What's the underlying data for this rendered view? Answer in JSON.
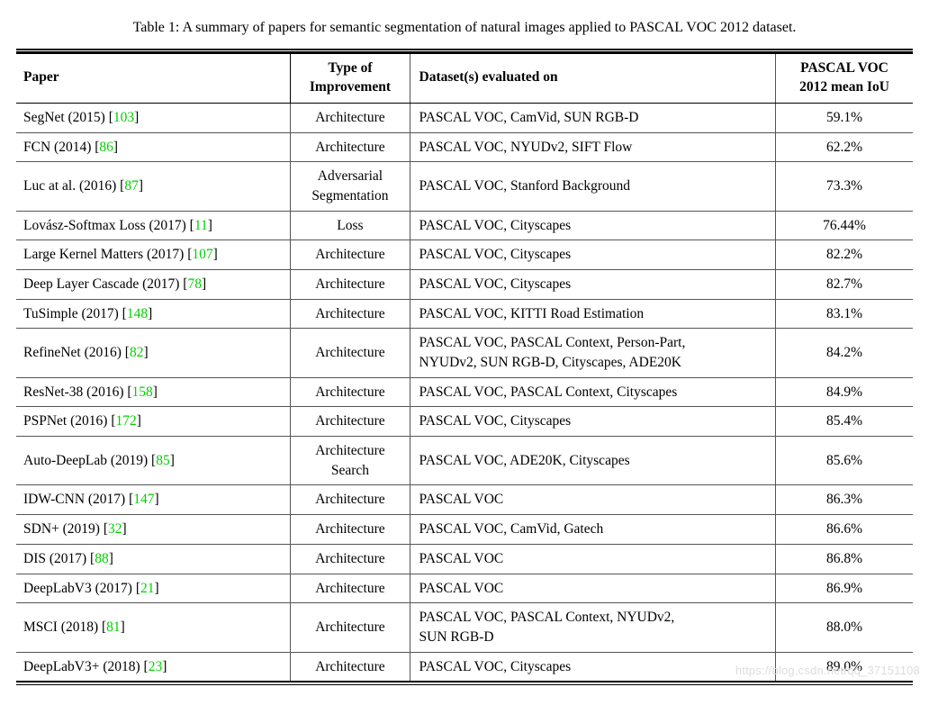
{
  "caption": "Table 1: A summary of papers for semantic segmentation of natural images applied to PASCAL VOC 2012 dataset.",
  "columns": {
    "paper": "Paper",
    "type": "Type of\nImprovement",
    "data": "Dataset(s) evaluated on",
    "iou": "PASCAL VOC\n2012 mean IoU"
  },
  "cite_color": "#00d000",
  "rows": [
    {
      "paper_pre": "SegNet (2015) [",
      "cite": "103",
      "paper_post": "]",
      "type": "Architecture",
      "data": "PASCAL VOC, CamVid, SUN RGB-D",
      "iou": "59.1%"
    },
    {
      "paper_pre": "FCN (2014) [",
      "cite": "86",
      "paper_post": "]",
      "type": "Architecture",
      "data": "PASCAL VOC, NYUDv2, SIFT Flow",
      "iou": "62.2%"
    },
    {
      "paper_pre": "Luc at al. (2016) [",
      "cite": "87",
      "paper_post": "]",
      "type": "Adversarial\nSegmentation",
      "data": "PASCAL VOC, Stanford Background",
      "iou": "73.3%"
    },
    {
      "paper_pre": "Lovász-Softmax Loss (2017) [",
      "cite": "11",
      "paper_post": "]",
      "type": "Loss",
      "data": "PASCAL VOC, Cityscapes",
      "iou": "76.44%"
    },
    {
      "paper_pre": "Large Kernel Matters (2017) [",
      "cite": "107",
      "paper_post": "]",
      "type": "Architecture",
      "data": "PASCAL VOC, Cityscapes",
      "iou": "82.2%"
    },
    {
      "paper_pre": "Deep Layer Cascade (2017) [",
      "cite": "78",
      "paper_post": "]",
      "type": "Architecture",
      "data": "PASCAL VOC, Cityscapes",
      "iou": "82.7%"
    },
    {
      "paper_pre": "TuSimple (2017) [",
      "cite": "148",
      "paper_post": "]",
      "type": "Architecture",
      "data": "PASCAL VOC, KITTI Road Estimation",
      "iou": "83.1%"
    },
    {
      "paper_pre": "RefineNet (2016) [",
      "cite": "82",
      "paper_post": "]",
      "type": "Architecture",
      "data": "PASCAL VOC, PASCAL Context, Person-Part,\nNYUDv2, SUN RGB-D, Cityscapes, ADE20K",
      "iou": "84.2%"
    },
    {
      "paper_pre": "ResNet-38 (2016) [",
      "cite": "158",
      "paper_post": "]",
      "type": "Architecture",
      "data": "PASCAL VOC, PASCAL Context, Cityscapes",
      "iou": "84.9%"
    },
    {
      "paper_pre": "PSPNet (2016) [",
      "cite": "172",
      "paper_post": "]",
      "type": "Architecture",
      "data": "PASCAL VOC, Cityscapes",
      "iou": "85.4%"
    },
    {
      "paper_pre": "Auto-DeepLab (2019) [",
      "cite": "85",
      "paper_post": "]",
      "type": "Architecture\nSearch",
      "data": "PASCAL VOC, ADE20K, Cityscapes",
      "iou": "85.6%"
    },
    {
      "paper_pre": "IDW-CNN (2017) [",
      "cite": "147",
      "paper_post": "]",
      "type": "Architecture",
      "data": "PASCAL VOC",
      "iou": "86.3%"
    },
    {
      "paper_pre": "SDN+ (2019) [",
      "cite": "32",
      "paper_post": "]",
      "type": "Architecture",
      "data": "PASCAL VOC, CamVid, Gatech",
      "iou": "86.6%"
    },
    {
      "paper_pre": "DIS (2017) [",
      "cite": "88",
      "paper_post": "]",
      "type": "Architecture",
      "data": "PASCAL VOC",
      "iou": "86.8%"
    },
    {
      "paper_pre": "DeepLabV3 (2017) [",
      "cite": "21",
      "paper_post": "]",
      "type": "Architecture",
      "data": "PASCAL VOC",
      "iou": "86.9%"
    },
    {
      "paper_pre": "MSCI (2018) [",
      "cite": "81",
      "paper_post": "]",
      "type": "Architecture",
      "data": "PASCAL VOC, PASCAL Context, NYUDv2,\nSUN RGB-D",
      "iou": "88.0%"
    },
    {
      "paper_pre": "DeepLabV3+ (2018) [",
      "cite": "23",
      "paper_post": "]",
      "type": "Architecture",
      "data": "PASCAL VOC, Cityscapes",
      "iou": "89.0%"
    }
  ],
  "watermark": "https://blog.csdn.net/qq_37151108"
}
